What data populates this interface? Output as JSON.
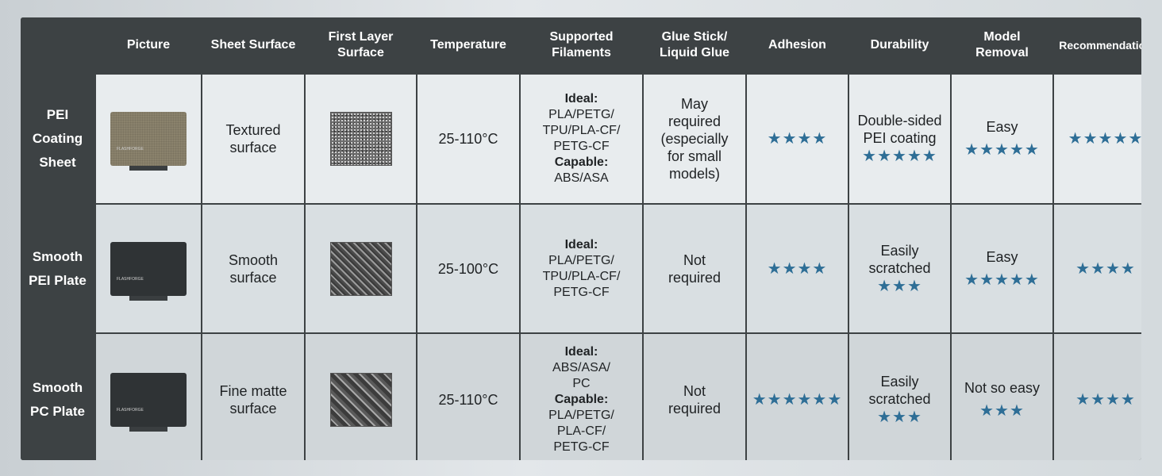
{
  "headers": [
    "",
    "Picture",
    "Sheet Surface",
    "First Layer\nSurface",
    "Temperature",
    "Supported\nFilaments",
    "Glue Stick/\nLiquid Glue",
    "Adhesion",
    "Durability",
    "Model\nRemoval",
    "Recommendation"
  ],
  "rows": [
    {
      "name": "PEI\nCoating\nSheet",
      "brand": "FLASHFORGE",
      "surface": "Textured\nsurface",
      "temperature": "25-110°C",
      "ideal_label": "Ideal:",
      "ideal": "PLA/PETG/\nTPU/PLA-CF/\nPETG-CF",
      "capable_label": "Capable:",
      "capable": "ABS/ASA",
      "glue": "May\nrequired\n(especially\nfor small\nmodels)",
      "adhesion": "★★★★",
      "durability_text": "Double-sided\nPEI coating",
      "durability_stars": "★★★★★",
      "removal_text": "Easy",
      "removal_stars": "★★★★★",
      "recommendation": "★★★★★"
    },
    {
      "name": "Smooth\nPEI Plate",
      "brand": "FLASHFORGE",
      "surface": "Smooth\nsurface",
      "temperature": "25-100°C",
      "ideal_label": "Ideal:",
      "ideal": "PLA/PETG/\nTPU/PLA-CF/\nPETG-CF",
      "glue": "Not\nrequired",
      "adhesion": "★★★★",
      "durability_text": "Easily\nscratched",
      "durability_stars": "★★★",
      "removal_text": "Easy",
      "removal_stars": "★★★★★",
      "recommendation": "★★★★"
    },
    {
      "name": "Smooth\nPC Plate",
      "brand": "FLASHFORGE",
      "surface": "Fine matte\nsurface",
      "temperature": "25-110°C",
      "ideal_label": "Ideal:",
      "ideal": "ABS/ASA/\nPC",
      "capable_label": "Capable:",
      "capable": "PLA/PETG/\nPLA-CF/\nPETG-CF",
      "glue": "Not\nrequired",
      "adhesion": "★★★★★★",
      "durability_text": "Easily\nscratched",
      "durability_stars": "★★★",
      "removal_text": "Not so easy",
      "removal_stars": "★★★",
      "recommendation": "★★★★"
    }
  ],
  "colors": {
    "header": "#3d4244",
    "star": "#2e6e96"
  }
}
